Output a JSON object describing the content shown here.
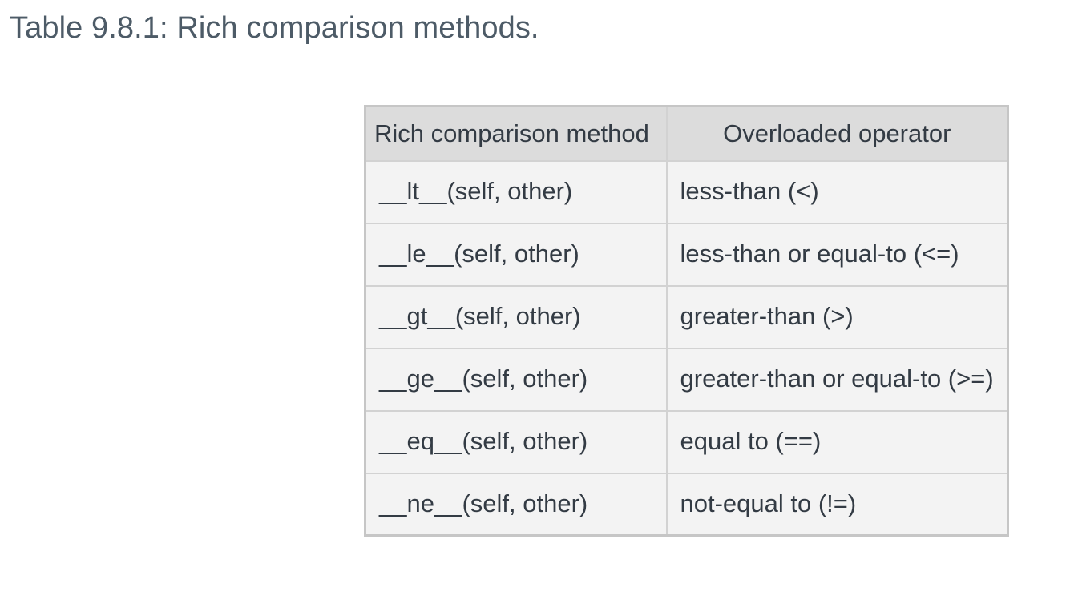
{
  "caption": "Table 9.8.1: Rich comparison methods.",
  "table": {
    "headers": [
      "Rich comparison method",
      "Overloaded operator"
    ],
    "rows": [
      {
        "method": "__lt__(self, other)",
        "operator": "less-than (<)"
      },
      {
        "method": "__le__(self, other)",
        "operator": "less-than or equal-to (<=)"
      },
      {
        "method": "__gt__(self, other)",
        "operator": "greater-than (>)"
      },
      {
        "method": "__ge__(self, other)",
        "operator": "greater-than or equal-to (>=)"
      },
      {
        "method": "__eq__(self, other)",
        "operator": "equal to (==)"
      },
      {
        "method": "__ne__(self, other)",
        "operator": "not-equal to (!=)"
      }
    ]
  }
}
